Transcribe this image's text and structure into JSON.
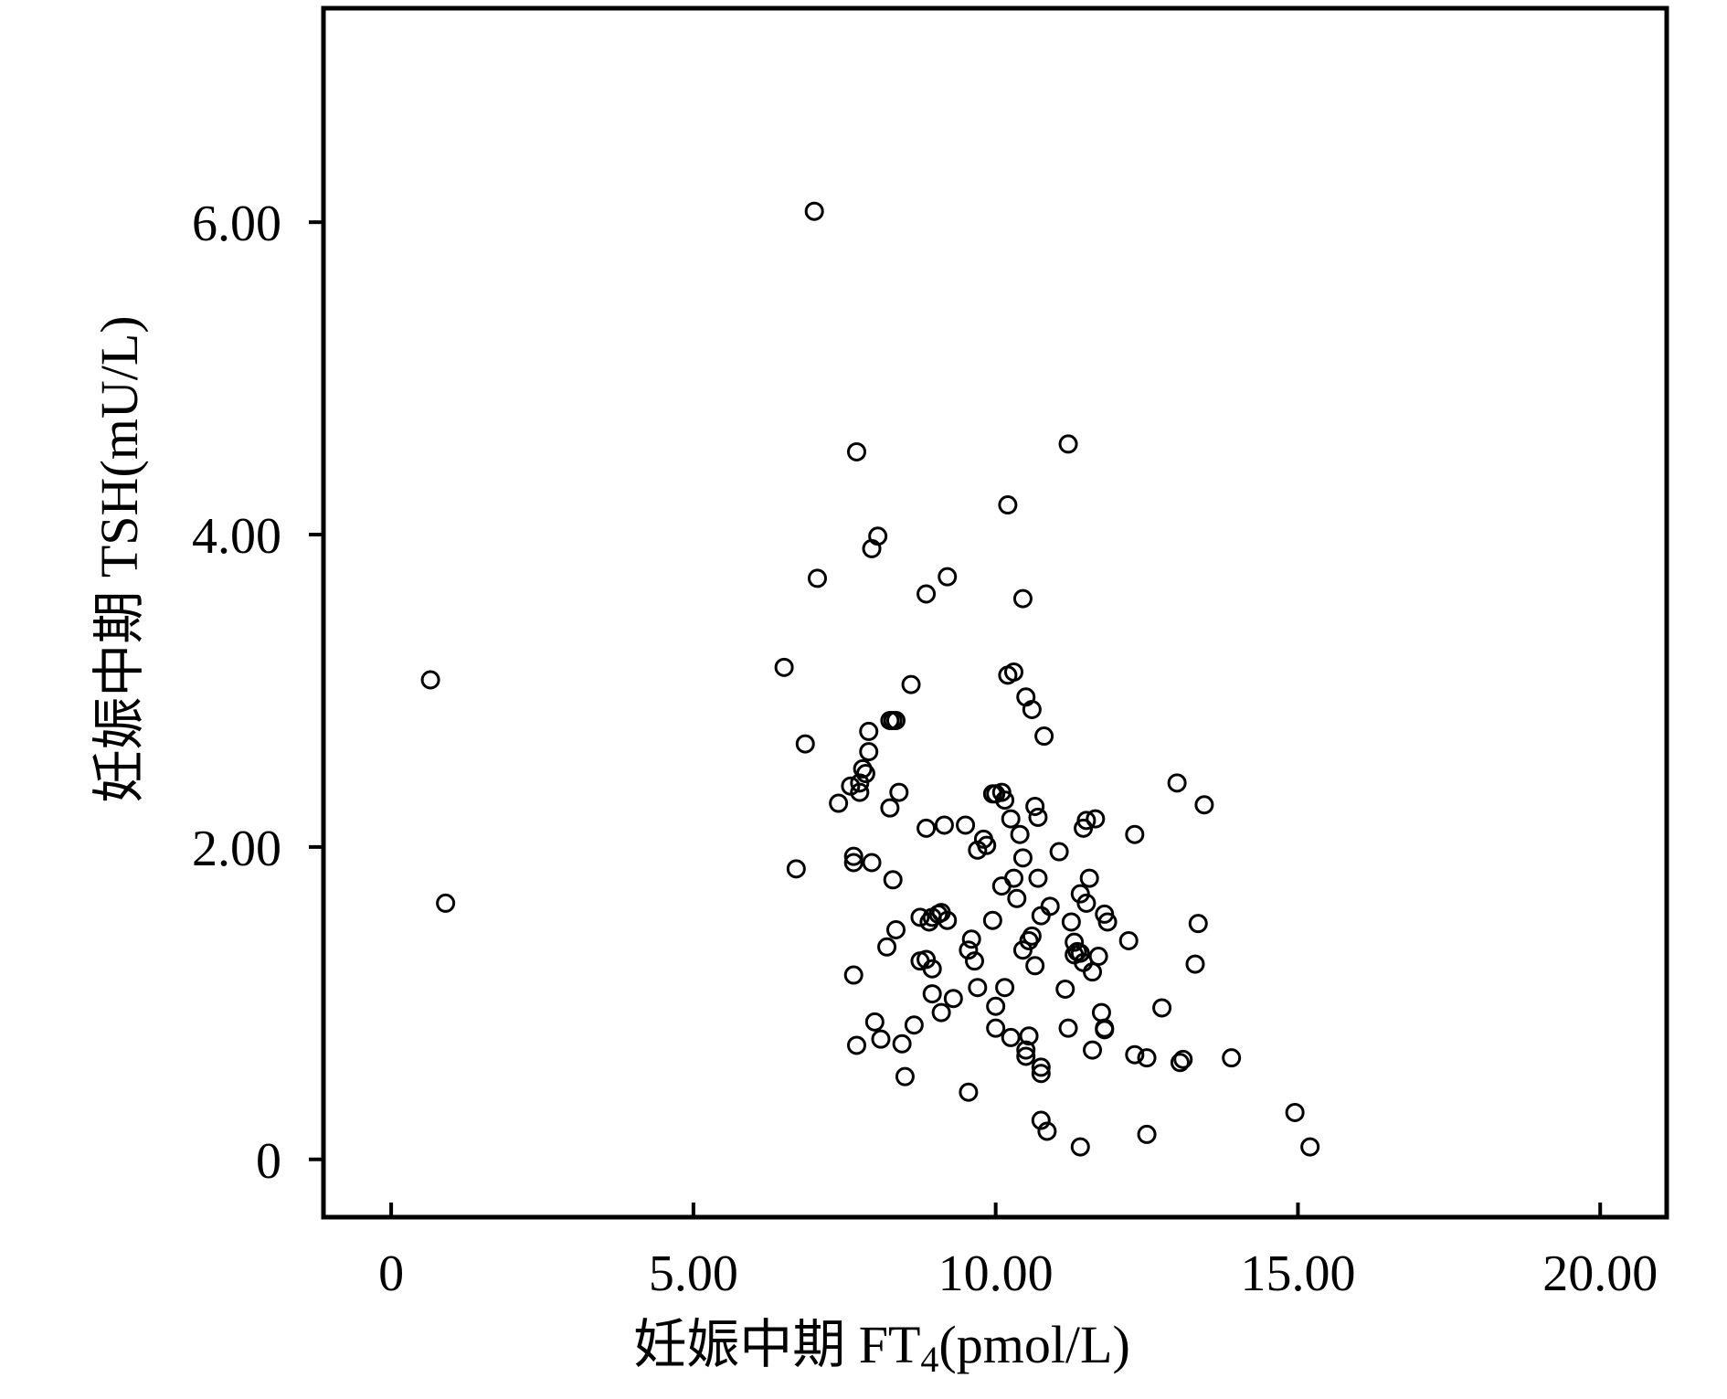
{
  "chart_data": {
    "type": "scatter",
    "title": "",
    "xlabel": {
      "prefix": "妊娠中期 FT",
      "subscript": "4",
      "suffix": "(pmol/L)"
    },
    "ylabel": "妊娠中期 TSH(mU/L)",
    "xlim": [
      -1.12,
      21.1
    ],
    "ylim": [
      -0.37,
      7.37
    ],
    "x_ticks": [
      0,
      5,
      10,
      15,
      20
    ],
    "x_tick_labels": [
      "0",
      "5.00",
      "10.00",
      "15.00",
      "20.00"
    ],
    "y_ticks": [
      0,
      2,
      4,
      6
    ],
    "y_tick_labels": [
      "0",
      "2.00",
      "4.00",
      "6.00"
    ],
    "grid": false,
    "legend": "none",
    "marker": "hollow-circle",
    "points": [
      [
        0.65,
        3.07
      ],
      [
        0.9,
        1.64
      ],
      [
        6.5,
        3.15
      ],
      [
        6.7,
        1.86
      ],
      [
        6.85,
        2.66
      ],
      [
        7.0,
        6.07
      ],
      [
        7.05,
        3.72
      ],
      [
        7.4,
        2.28
      ],
      [
        7.6,
        2.39
      ],
      [
        7.65,
        1.94
      ],
      [
        7.65,
        1.9
      ],
      [
        7.65,
        1.18
      ],
      [
        7.7,
        4.53
      ],
      [
        7.7,
        0.73
      ],
      [
        7.75,
        2.35
      ],
      [
        7.75,
        2.41
      ],
      [
        7.8,
        2.5
      ],
      [
        7.85,
        2.47
      ],
      [
        7.9,
        2.74
      ],
      [
        7.9,
        2.61
      ],
      [
        7.95,
        3.91
      ],
      [
        7.95,
        1.9
      ],
      [
        8.0,
        0.88
      ],
      [
        8.05,
        3.99
      ],
      [
        8.1,
        0.77
      ],
      [
        8.2,
        1.36
      ],
      [
        8.25,
        2.81
      ],
      [
        8.25,
        2.25
      ],
      [
        8.3,
        2.81
      ],
      [
        8.3,
        1.79
      ],
      [
        8.35,
        2.81
      ],
      [
        8.35,
        1.47
      ],
      [
        8.4,
        2.35
      ],
      [
        8.45,
        0.74
      ],
      [
        8.5,
        0.53
      ],
      [
        8.6,
        3.04
      ],
      [
        8.65,
        0.86
      ],
      [
        8.75,
        1.55
      ],
      [
        8.75,
        1.27
      ],
      [
        8.85,
        3.62
      ],
      [
        8.85,
        2.12
      ],
      [
        8.85,
        1.28
      ],
      [
        8.9,
        1.52
      ],
      [
        8.95,
        1.06
      ],
      [
        8.95,
        1.22
      ],
      [
        8.95,
        1.55
      ],
      [
        9.05,
        1.57
      ],
      [
        9.1,
        1.58
      ],
      [
        9.1,
        0.94
      ],
      [
        9.15,
        2.14
      ],
      [
        9.2,
        1.53
      ],
      [
        9.2,
        3.73
      ],
      [
        9.3,
        1.03
      ],
      [
        9.5,
        2.14
      ],
      [
        9.55,
        0.43
      ],
      [
        9.55,
        1.34
      ],
      [
        9.6,
        1.41
      ],
      [
        9.65,
        1.27
      ],
      [
        9.7,
        1.1
      ],
      [
        9.7,
        1.98
      ],
      [
        9.8,
        2.05
      ],
      [
        9.85,
        2.01
      ],
      [
        9.95,
        1.53
      ],
      [
        9.95,
        2.34
      ],
      [
        10.0,
        2.34
      ],
      [
        10.0,
        0.98
      ],
      [
        10.0,
        0.84
      ],
      [
        10.1,
        2.35
      ],
      [
        10.1,
        1.75
      ],
      [
        10.15,
        2.3
      ],
      [
        10.15,
        1.1
      ],
      [
        10.2,
        3.1
      ],
      [
        10.2,
        4.19
      ],
      [
        10.25,
        2.18
      ],
      [
        10.25,
        0.78
      ],
      [
        10.3,
        1.8
      ],
      [
        10.3,
        3.12
      ],
      [
        10.35,
        1.67
      ],
      [
        10.4,
        2.08
      ],
      [
        10.45,
        1.34
      ],
      [
        10.45,
        1.93
      ],
      [
        10.45,
        3.59
      ],
      [
        10.5,
        2.96
      ],
      [
        10.5,
        0.7
      ],
      [
        10.5,
        0.66
      ],
      [
        10.55,
        1.4
      ],
      [
        10.55,
        0.79
      ],
      [
        10.6,
        1.43
      ],
      [
        10.6,
        2.88
      ],
      [
        10.65,
        2.26
      ],
      [
        10.65,
        1.24
      ],
      [
        10.7,
        2.19
      ],
      [
        10.7,
        1.8
      ],
      [
        10.75,
        0.59
      ],
      [
        10.75,
        0.55
      ],
      [
        10.75,
        1.56
      ],
      [
        10.75,
        0.25
      ],
      [
        10.8,
        2.71
      ],
      [
        10.85,
        0.18
      ],
      [
        10.9,
        1.62
      ],
      [
        11.05,
        1.97
      ],
      [
        11.15,
        1.09
      ],
      [
        11.2,
        0.84
      ],
      [
        11.2,
        4.58
      ],
      [
        11.25,
        1.52
      ],
      [
        11.3,
        1.39
      ],
      [
        11.3,
        1.31
      ],
      [
        11.35,
        1.33
      ],
      [
        11.4,
        0.08
      ],
      [
        11.4,
        1.7
      ],
      [
        11.4,
        1.32
      ],
      [
        11.45,
        2.12
      ],
      [
        11.45,
        1.26
      ],
      [
        11.5,
        1.64
      ],
      [
        11.5,
        2.17
      ],
      [
        11.55,
        1.8
      ],
      [
        11.6,
        1.2
      ],
      [
        11.6,
        0.7
      ],
      [
        11.65,
        2.18
      ],
      [
        11.7,
        1.3
      ],
      [
        11.75,
        0.94
      ],
      [
        11.8,
        0.83
      ],
      [
        11.8,
        0.84
      ],
      [
        11.8,
        1.57
      ],
      [
        11.85,
        1.52
      ],
      [
        12.2,
        1.4
      ],
      [
        12.3,
        2.08
      ],
      [
        12.3,
        0.67
      ],
      [
        12.5,
        0.65
      ],
      [
        12.5,
        0.16
      ],
      [
        12.75,
        0.97
      ],
      [
        13.0,
        2.41
      ],
      [
        13.05,
        0.62
      ],
      [
        13.1,
        0.64
      ],
      [
        13.3,
        1.25
      ],
      [
        13.35,
        1.51
      ],
      [
        13.45,
        2.27
      ],
      [
        13.9,
        0.65
      ],
      [
        14.95,
        0.3
      ],
      [
        15.2,
        0.08
      ]
    ]
  }
}
